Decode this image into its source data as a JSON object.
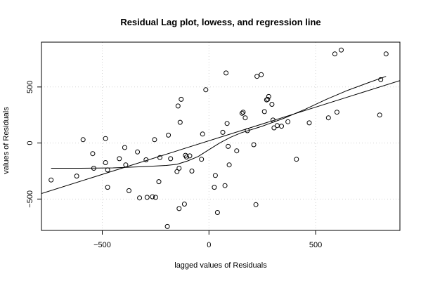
{
  "chart_data": {
    "type": "scatter",
    "title": "Residual Lag plot, lowess, and regression line",
    "xlabel": "lagged values of Residuals",
    "ylabel": "values of Residuals",
    "xlim": [
      -785,
      895
    ],
    "ylim": [
      -780,
      900
    ],
    "xticks": [
      -500,
      0,
      500
    ],
    "yticks": [
      -500,
      0,
      500
    ],
    "xtick_labels": [
      "−500",
      "0",
      "500"
    ],
    "ytick_labels": [
      "−500",
      "0",
      "500"
    ],
    "grid": true,
    "points": [
      [
        -740,
        -330
      ],
      [
        -620,
        -295
      ],
      [
        -590,
        30
      ],
      [
        -545,
        -95
      ],
      [
        -540,
        -225
      ],
      [
        -485,
        -175
      ],
      [
        -485,
        40
      ],
      [
        -475,
        -240
      ],
      [
        -475,
        -395
      ],
      [
        -420,
        -140
      ],
      [
        -395,
        -40
      ],
      [
        -390,
        -195
      ],
      [
        -375,
        -425
      ],
      [
        -335,
        -80
      ],
      [
        -325,
        -490
      ],
      [
        -295,
        -150
      ],
      [
        -290,
        -485
      ],
      [
        -265,
        -480
      ],
      [
        -255,
        30
      ],
      [
        -250,
        -485
      ],
      [
        -235,
        -345
      ],
      [
        -230,
        -130
      ],
      [
        -195,
        -745
      ],
      [
        -190,
        70
      ],
      [
        -180,
        -140
      ],
      [
        -150,
        -255
      ],
      [
        -145,
        330
      ],
      [
        -140,
        -225
      ],
      [
        -140,
        -585
      ],
      [
        -135,
        185
      ],
      [
        -130,
        390
      ],
      [
        -115,
        -545
      ],
      [
        -110,
        -110
      ],
      [
        -105,
        -125
      ],
      [
        -90,
        -115
      ],
      [
        -80,
        -250
      ],
      [
        -35,
        -145
      ],
      [
        -30,
        80
      ],
      [
        -15,
        475
      ],
      [
        25,
        -395
      ],
      [
        30,
        -290
      ],
      [
        40,
        -620
      ],
      [
        65,
        95
      ],
      [
        75,
        -380
      ],
      [
        80,
        625
      ],
      [
        85,
        175
      ],
      [
        90,
        -30
      ],
      [
        95,
        -195
      ],
      [
        130,
        -70
      ],
      [
        155,
        265
      ],
      [
        160,
        275
      ],
      [
        170,
        225
      ],
      [
        180,
        110
      ],
      [
        210,
        -15
      ],
      [
        220,
        -550
      ],
      [
        225,
        595
      ],
      [
        245,
        610
      ],
      [
        260,
        280
      ],
      [
        270,
        385
      ],
      [
        275,
        390
      ],
      [
        280,
        415
      ],
      [
        295,
        345
      ],
      [
        300,
        205
      ],
      [
        305,
        135
      ],
      [
        320,
        155
      ],
      [
        340,
        150
      ],
      [
        370,
        190
      ],
      [
        410,
        -145
      ],
      [
        470,
        180
      ],
      [
        560,
        225
      ],
      [
        590,
        795
      ],
      [
        600,
        275
      ],
      [
        620,
        830
      ],
      [
        800,
        250
      ],
      [
        805,
        565
      ],
      [
        830,
        795
      ]
    ],
    "lowess": [
      [
        -740,
        -225
      ],
      [
        -600,
        -225
      ],
      [
        -450,
        -222
      ],
      [
        -300,
        -210
      ],
      [
        -200,
        -200
      ],
      [
        -150,
        -190
      ],
      [
        -100,
        -160
      ],
      [
        -50,
        -120
      ],
      [
        0,
        -60
      ],
      [
        50,
        0
      ],
      [
        100,
        50
      ],
      [
        150,
        90
      ],
      [
        250,
        150
      ],
      [
        350,
        220
      ],
      [
        450,
        300
      ],
      [
        550,
        390
      ],
      [
        650,
        470
      ],
      [
        750,
        540
      ],
      [
        830,
        595
      ]
    ],
    "regression": {
      "intercept": 20,
      "slope": 0.6,
      "x_range": [
        -785,
        895
      ]
    }
  }
}
